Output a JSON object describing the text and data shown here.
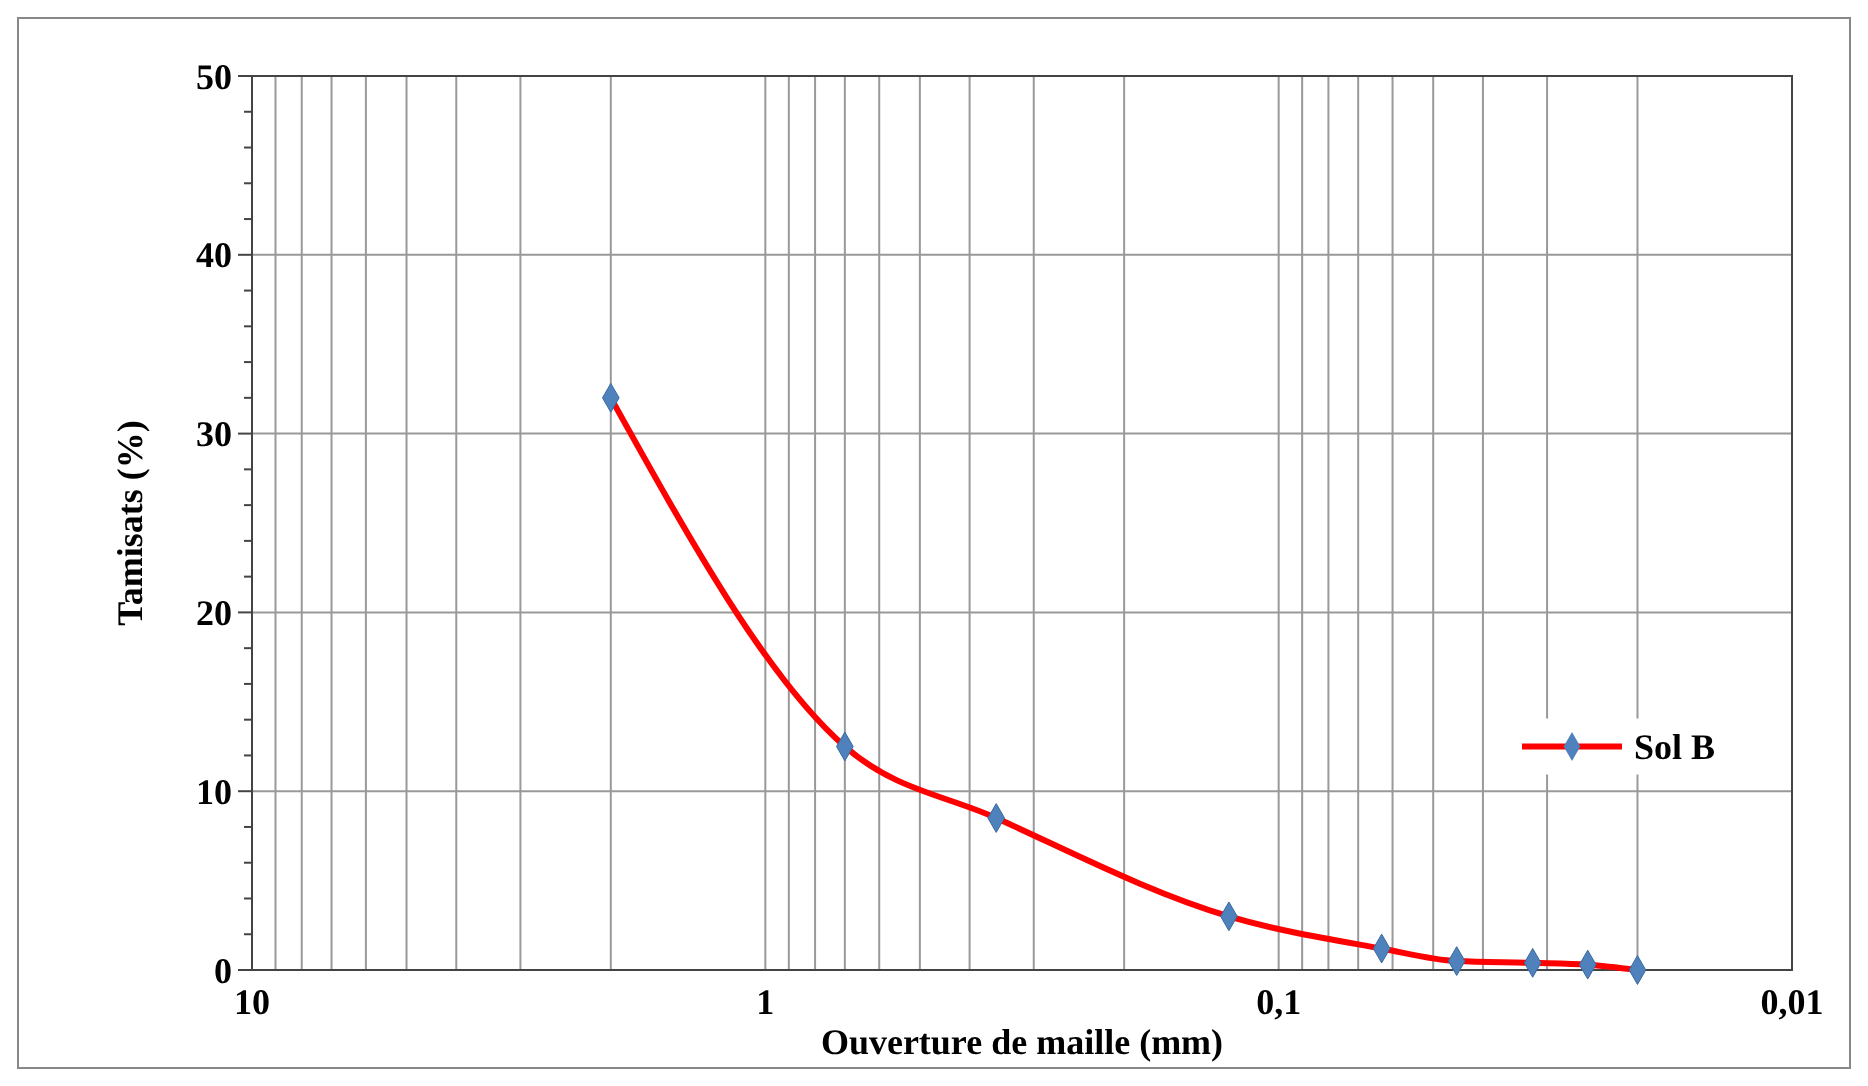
{
  "chart_data": {
    "type": "line",
    "xlabel": "Ouverture de maille (mm)",
    "ylabel": "Tamisats (%)",
    "log": "x",
    "xlim": [
      10,
      0.01
    ],
    "xticks": [
      10,
      1,
      {
        "value": 0.1,
        "label": "0,1"
      },
      {
        "value": 0.01,
        "label": "0,01"
      }
    ],
    "ylim": [
      0,
      50
    ],
    "yticks": [
      0,
      10,
      20,
      30,
      40,
      50
    ],
    "grid": true,
    "legend": "right",
    "marker": "diamond",
    "line_style": "solid",
    "x": [
      2,
      0.7,
      0.355,
      0.125,
      0.063,
      0.045,
      0.032,
      0.025,
      0.02
    ],
    "series": [
      {
        "name": "Sol B",
        "color": "#ff0000",
        "values": [
          32,
          12.5,
          8.5,
          3,
          1.2,
          0.5,
          0.4,
          0.3,
          0
        ]
      }
    ]
  }
}
